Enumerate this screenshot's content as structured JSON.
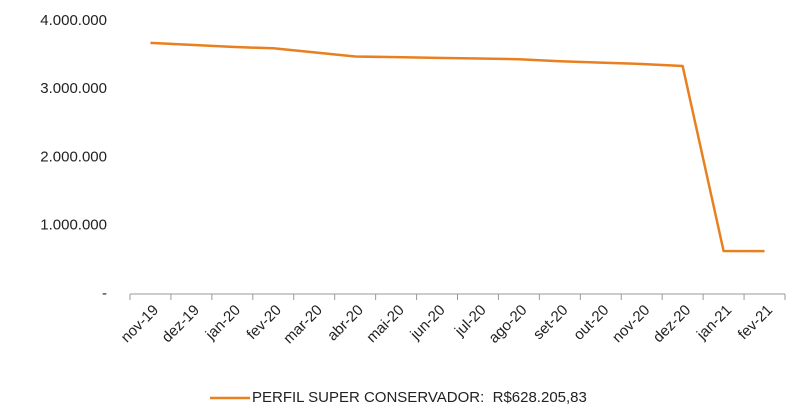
{
  "chart_data": {
    "type": "line",
    "categories": [
      "nov-19",
      "dez-19",
      "jan-20",
      "fev-20",
      "mar-20",
      "abr-20",
      "mai-20",
      "jun-20",
      "jul-20",
      "ago-20",
      "set-20",
      "out-20",
      "nov-20",
      "dez-20",
      "jan-21",
      "fev-21"
    ],
    "series": [
      {
        "name": "PERFIL SUPER CONSERVADOR:  R$628.205,83",
        "color": "#e8801f",
        "values": [
          3680000,
          3650000,
          3620000,
          3600000,
          3540000,
          3480000,
          3470000,
          3460000,
          3450000,
          3440000,
          3410000,
          3390000,
          3370000,
          3340000,
          630000,
          628205.83
        ]
      }
    ],
    "ylim": [
      0,
      4000000
    ],
    "yticks": [
      {
        "value": 0,
        "label": "-"
      },
      {
        "value": 1000000,
        "label": "1.000.000"
      },
      {
        "value": 2000000,
        "label": "2.000.000"
      },
      {
        "value": 3000000,
        "label": "3.000.000"
      },
      {
        "value": 4000000,
        "label": "4.000.000"
      }
    ],
    "grid": false
  }
}
